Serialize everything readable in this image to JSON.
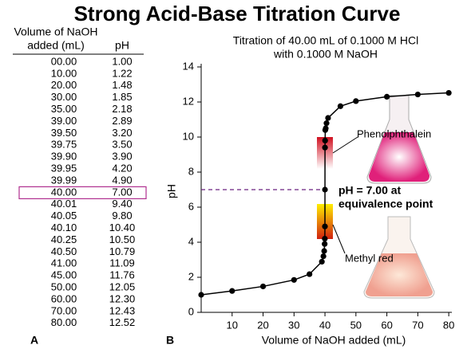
{
  "title": "Strong Acid-Base Titration Curve",
  "table": {
    "headers": [
      "Volume of NaOH\nadded (mL)",
      "pH"
    ],
    "rows": [
      [
        "00.00",
        "1.00"
      ],
      [
        "10.00",
        "1.22"
      ],
      [
        "20.00",
        "1.48"
      ],
      [
        "30.00",
        "1.85"
      ],
      [
        "35.00",
        "2.18"
      ],
      [
        "39.00",
        "2.89"
      ],
      [
        "39.50",
        "3.20"
      ],
      [
        "39.75",
        "3.50"
      ],
      [
        "39.90",
        "3.90"
      ],
      [
        "39.95",
        "4.20"
      ],
      [
        "39.99",
        "4.90"
      ],
      [
        "40.00",
        "7.00"
      ],
      [
        "40.01",
        "9.40"
      ],
      [
        "40.05",
        "9.80"
      ],
      [
        "40.10",
        "10.40"
      ],
      [
        "40.25",
        "10.50"
      ],
      [
        "40.50",
        "10.79"
      ],
      [
        "41.00",
        "11.09"
      ],
      [
        "45.00",
        "11.76"
      ],
      [
        "50.00",
        "12.05"
      ],
      [
        "60.00",
        "12.30"
      ],
      [
        "70.00",
        "12.43"
      ],
      [
        "80.00",
        "12.52"
      ]
    ],
    "highlighted_row": 11
  },
  "panel_labels": [
    "A",
    "B"
  ],
  "chart_data": {
    "type": "line",
    "title_lines": [
      "Titration of 40.00 mL of 0.1000 M HCl",
      "with 0.1000 M NaOH"
    ],
    "x_label": "Volume of NaOH added (mL)",
    "y_label": "pH",
    "annotations": [
      "Phenolphthalein",
      "pH = 7.00 at",
      "equivalence point",
      "Methyl red"
    ],
    "x": [
      0,
      10,
      20,
      30,
      35,
      39,
      39.5,
      39.75,
      39.9,
      39.95,
      39.99,
      40,
      40.01,
      40.05,
      40.1,
      40.25,
      40.5,
      41,
      45,
      50,
      60,
      70,
      80
    ],
    "values": [
      1.0,
      1.22,
      1.48,
      1.85,
      2.18,
      2.89,
      3.2,
      3.5,
      3.9,
      4.2,
      4.9,
      7.0,
      9.4,
      9.8,
      10.4,
      10.5,
      10.79,
      11.09,
      11.76,
      12.05,
      12.3,
      12.43,
      12.52
    ],
    "color": "#000000",
    "xlim": [
      0,
      81
    ],
    "ylim": [
      0,
      14
    ],
    "xticks": [
      10,
      20,
      30,
      40,
      50,
      60,
      70,
      80
    ],
    "yticks": [
      0,
      2,
      4,
      6,
      8,
      10,
      12,
      14
    ]
  }
}
